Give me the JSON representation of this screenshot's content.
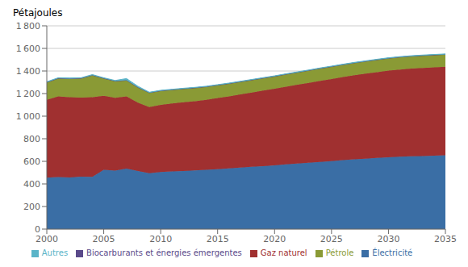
{
  "chart_data": {
    "type": "area",
    "stacked": true,
    "ylabel": "Pétajoules",
    "x": [
      2000,
      2001,
      2002,
      2003,
      2004,
      2005,
      2006,
      2007,
      2008,
      2009,
      2010,
      2011,
      2012,
      2013,
      2014,
      2015,
      2016,
      2017,
      2018,
      2019,
      2020,
      2021,
      2022,
      2023,
      2024,
      2025,
      2026,
      2027,
      2028,
      2029,
      2030,
      2031,
      2032,
      2033,
      2034,
      2035
    ],
    "series": [
      {
        "name": "Électricité",
        "color": "#3a6ea5",
        "values": [
          455,
          460,
          458,
          465,
          463,
          525,
          518,
          535,
          515,
          495,
          505,
          510,
          515,
          520,
          525,
          530,
          537,
          544,
          551,
          558,
          565,
          573,
          580,
          587,
          595,
          602,
          610,
          617,
          623,
          630,
          636,
          641,
          644,
          647,
          650,
          653
        ]
      },
      {
        "name": "Gaz naturel",
        "color": "#a03030",
        "values": [
          690,
          715,
          710,
          700,
          705,
          655,
          645,
          640,
          605,
          585,
          595,
          602,
          608,
          613,
          620,
          630,
          638,
          648,
          658,
          668,
          678,
          688,
          698,
          708,
          718,
          727,
          736,
          745,
          753,
          760,
          767,
          772,
          777,
          780,
          782,
          784
        ]
      },
      {
        "name": "Pétrole",
        "color": "#8a9a35",
        "values": [
          155,
          160,
          165,
          170,
          195,
          155,
          148,
          143,
          135,
          128,
          125,
          122,
          120,
          118,
          116,
          115,
          114,
          113,
          112,
          111,
          110,
          110,
          110,
          110,
          110,
          110,
          110,
          110,
          110,
          110,
          110,
          110,
          110,
          110,
          110,
          110
        ]
      },
      {
        "name": "Biocarburants et énergies émergentes",
        "color": "#5a4a8a",
        "values": [
          0,
          0,
          0,
          0,
          0,
          0,
          0,
          0,
          0,
          0,
          0,
          0,
          0,
          0,
          0,
          0,
          0,
          0,
          0,
          0,
          0,
          0,
          0,
          0,
          0,
          0,
          0,
          0,
          0,
          0,
          0,
          0,
          0,
          0,
          0,
          0
        ]
      },
      {
        "name": "Autres",
        "color": "#5ab4c8",
        "values": [
          5,
          5,
          5,
          5,
          5,
          5,
          5,
          15,
          10,
          4,
          4,
          4,
          4,
          4,
          4,
          4,
          4,
          4,
          4,
          4,
          4,
          4,
          4,
          4,
          4,
          4,
          4,
          4,
          4,
          4,
          4,
          4,
          4,
          4,
          4,
          4
        ]
      }
    ],
    "xlim": [
      2000,
      2035
    ],
    "xticks": [
      2000,
      2005,
      2010,
      2015,
      2020,
      2025,
      2030,
      2035
    ],
    "ylim": [
      0,
      1800
    ],
    "yticks": [
      0,
      200,
      400,
      600,
      800,
      {
        "value": 1000,
        "label": "1 000"
      },
      {
        "value": 1200,
        "label": "1 200"
      },
      {
        "value": 1400,
        "label": "1 400"
      },
      {
        "value": 1600,
        "label": "1 600"
      },
      {
        "value": 1800,
        "label": "1 800"
      }
    ],
    "grid": true,
    "legend": "bottom"
  }
}
